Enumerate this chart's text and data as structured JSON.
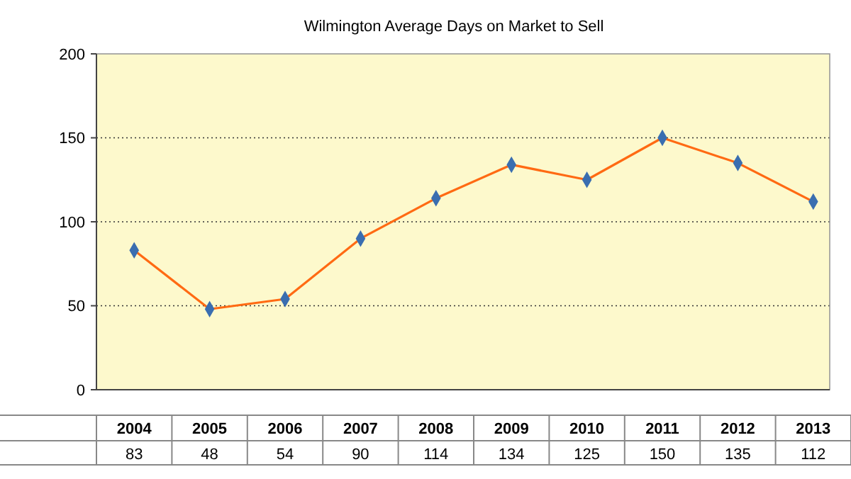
{
  "chart_data": {
    "type": "line",
    "title": "Wilmington Average Days on Market to Sell",
    "categories": [
      "2004",
      "2005",
      "2006",
      "2007",
      "2008",
      "2009",
      "2010",
      "2011",
      "2012",
      "2013"
    ],
    "series": [
      {
        "color": "#ff6a13",
        "values": [
          83,
          48,
          54,
          90,
          114,
          134,
          125,
          150,
          135,
          112
        ]
      }
    ],
    "ylim": [
      0,
      200
    ],
    "yticks": [
      0,
      50,
      100,
      150,
      200
    ],
    "grid": "y",
    "marker": "diamond",
    "line_style": "solid",
    "data_labels": true
  }
}
